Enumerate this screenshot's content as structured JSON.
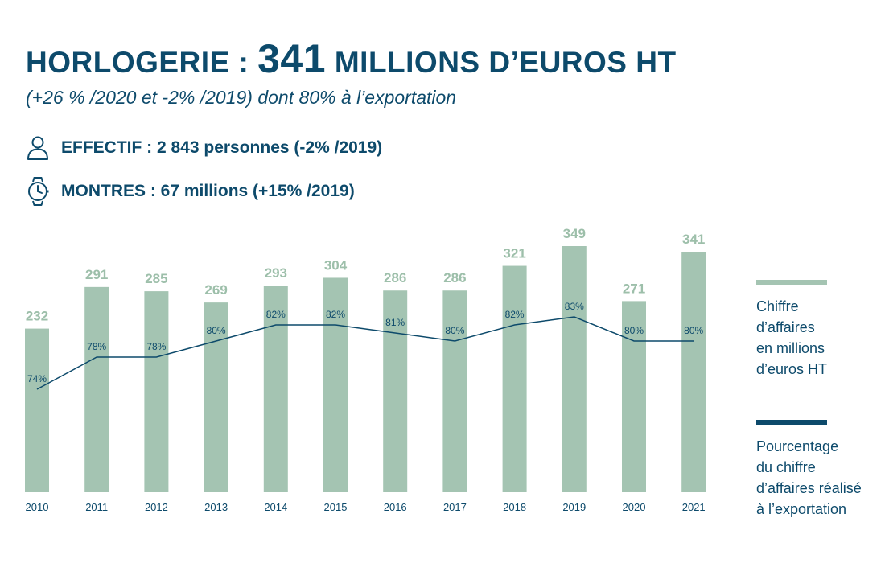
{
  "header": {
    "title_prefix": "HORLOGERIE : ",
    "title_number": "341",
    "title_suffix": " MILLIONS D’EUROS HT",
    "subtitle": "(+26 % /2020 et -2% /2019) dont 80% à l’exportation"
  },
  "stats": {
    "effectif": "EFFECTIF : 2 843 personnes (-2% /2019)",
    "montres": "MONTRES : 67 millions (+15% /2019)"
  },
  "legend": {
    "bars_line1": "Chiffre",
    "bars_line2": "d’affaires",
    "bars_line3": "en millions",
    "bars_line4": "d’euros HT",
    "line_line1": "Pourcentage",
    "line_line2": "du chiffre",
    "line_line3": "d’affaires réalisé",
    "line_line4": "à l’exportation"
  },
  "colors": {
    "title": "#0d4a6b",
    "bar": "#a4c4b2",
    "bar_label": "#9dbfaa",
    "line": "#0d4a6b"
  },
  "chart_data": {
    "type": "bar",
    "categories": [
      "2010",
      "2011",
      "2012",
      "2013",
      "2014",
      "2015",
      "2016",
      "2017",
      "2018",
      "2019",
      "2020",
      "2021"
    ],
    "series": [
      {
        "name": "Chiffre d’affaires en millions d’euros HT",
        "type": "bar",
        "values": [
          232,
          291,
          285,
          269,
          293,
          304,
          286,
          286,
          321,
          349,
          271,
          341
        ],
        "labels": [
          "232",
          "291",
          "285",
          "269",
          "293",
          "304",
          "286",
          "286",
          "321",
          "349",
          "271",
          "341"
        ]
      },
      {
        "name": "Pourcentage du chiffre d’affaires réalisé à l’exportation",
        "type": "line",
        "values": [
          74,
          78,
          78,
          80,
          82,
          82,
          81,
          80,
          82,
          83,
          80,
          80
        ],
        "labels": [
          "74%",
          "78%",
          "78%",
          "80%",
          "82%",
          "82%",
          "81%",
          "80%",
          "82%",
          "83%",
          "80%",
          "80%"
        ]
      }
    ],
    "bar_ylim": [
      0,
      349
    ],
    "line_ylim": [
      70,
      90
    ],
    "legend_position": "right",
    "grid": false
  }
}
